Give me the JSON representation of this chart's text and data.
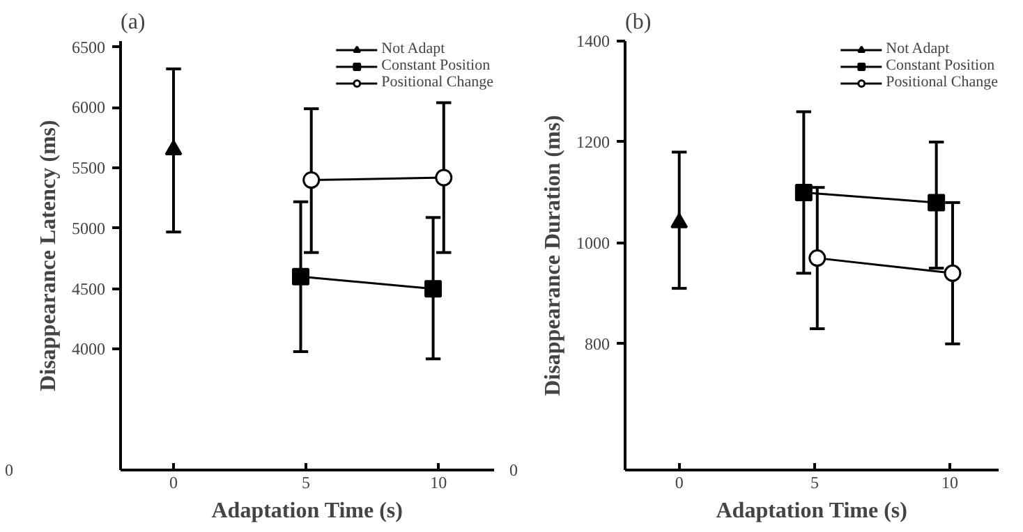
{
  "chart_data": [
    {
      "type": "line",
      "title": "(a)",
      "xlabel": "Adaptation Time (s)",
      "ylabel": "Disappearance Latency (ms)",
      "xlim": [
        -2,
        12.1
      ],
      "ylim": [
        3000,
        6550
      ],
      "xticks": [
        0,
        5,
        10
      ],
      "yticks": [
        4000,
        4500,
        5000,
        5500,
        6000,
        6500
      ],
      "annotations": [
        "0"
      ],
      "grid": false,
      "legend": "top right",
      "line_style": "solid",
      "series": [
        {
          "name": "Not Adapt",
          "color": "#000000",
          "marker": "triangle",
          "x": [
            0
          ],
          "values": [
            5650
          ],
          "errors": [
            [
              4970,
              6320
            ]
          ]
        },
        {
          "name": "Constant Position",
          "color": "#000000",
          "marker": "square",
          "x": [
            4.8,
            9.8
          ],
          "values": [
            4600,
            4500
          ],
          "errors": [
            [
              3980,
              5220
            ],
            [
              3920,
              5090
            ]
          ]
        },
        {
          "name": "Positional Change",
          "color": "#000000",
          "marker": "circle",
          "x": [
            5.2,
            10.2
          ],
          "values": [
            5400,
            5420
          ],
          "errors": [
            [
              4800,
              5990
            ],
            [
              4800,
              6040
            ]
          ]
        }
      ]
    },
    {
      "type": "line",
      "title": "(b)",
      "xlabel": "Adaptation Time (s)",
      "ylabel": "Disappearance Duration (ms)",
      "xlim": [
        -2,
        11.8
      ],
      "ylim": [
        550,
        1400
      ],
      "xticks": [
        0,
        5,
        10
      ],
      "yticks": [
        800,
        1000,
        1200,
        1400
      ],
      "annotations": [
        "0"
      ],
      "grid": false,
      "legend": "top right",
      "line_style": "solid",
      "series": [
        {
          "name": "Not Adapt",
          "color": "#000000",
          "marker": "triangle",
          "x": [
            0
          ],
          "values": [
            1040
          ],
          "errors": [
            [
              910,
              1180
            ]
          ]
        },
        {
          "name": "Constant Position",
          "color": "#000000",
          "marker": "square",
          "x": [
            4.6,
            9.5
          ],
          "values": [
            1100,
            1080
          ],
          "errors": [
            [
              940,
              1260
            ],
            [
              950,
              1200
            ]
          ]
        },
        {
          "name": "Positional Change",
          "color": "#000000",
          "marker": "circle",
          "x": [
            5.1,
            10.1
          ],
          "values": [
            970,
            940
          ],
          "errors": [
            [
              830,
              1110
            ],
            [
              800,
              1080
            ]
          ]
        }
      ]
    }
  ]
}
